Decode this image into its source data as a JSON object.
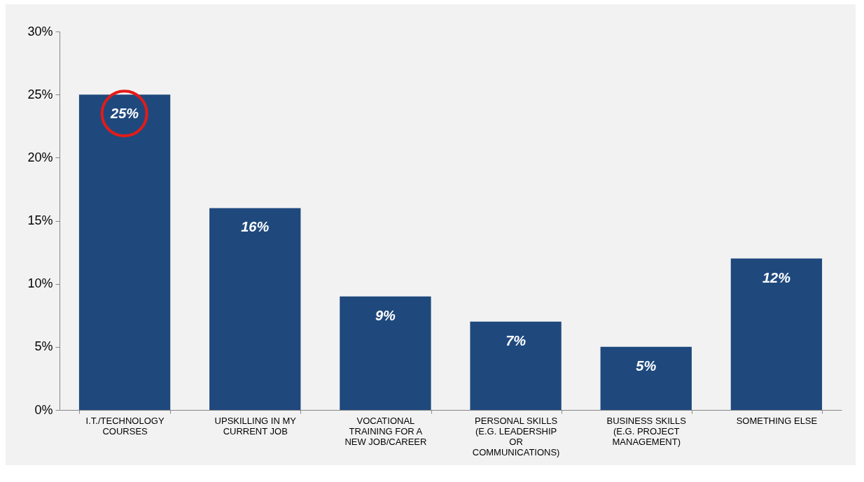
{
  "chart_data": {
    "type": "bar",
    "categories": [
      "I.T./TECHNOLOGY COURSES",
      "UPSKILLING IN MY CURRENT JOB",
      "VOCATIONAL TRAINING FOR A NEW JOB/CAREER",
      "PERSONAL SKILLS (E.G. LEADERSHIP OR COMMUNICATIONS)",
      "BUSINESS SKILLS (E.G. PROJECT MANAGEMENT)",
      "SOMETHING ELSE"
    ],
    "values": [
      25,
      16,
      9,
      7,
      5,
      12
    ],
    "value_labels": [
      "25%",
      "16%",
      "9%",
      "7%",
      "5%",
      "12%"
    ],
    "color": "#1f497d",
    "ylim": [
      0,
      30
    ],
    "yticks": [
      {
        "value": 0,
        "label": "0%"
      },
      {
        "value": 5,
        "label": "5%"
      },
      {
        "value": 10,
        "label": "10%"
      },
      {
        "value": 15,
        "label": "15%"
      },
      {
        "value": 20,
        "label": "20%"
      },
      {
        "value": 25,
        "label": "25%"
      },
      {
        "value": 30,
        "label": "30%"
      }
    ],
    "grid": false
  }
}
